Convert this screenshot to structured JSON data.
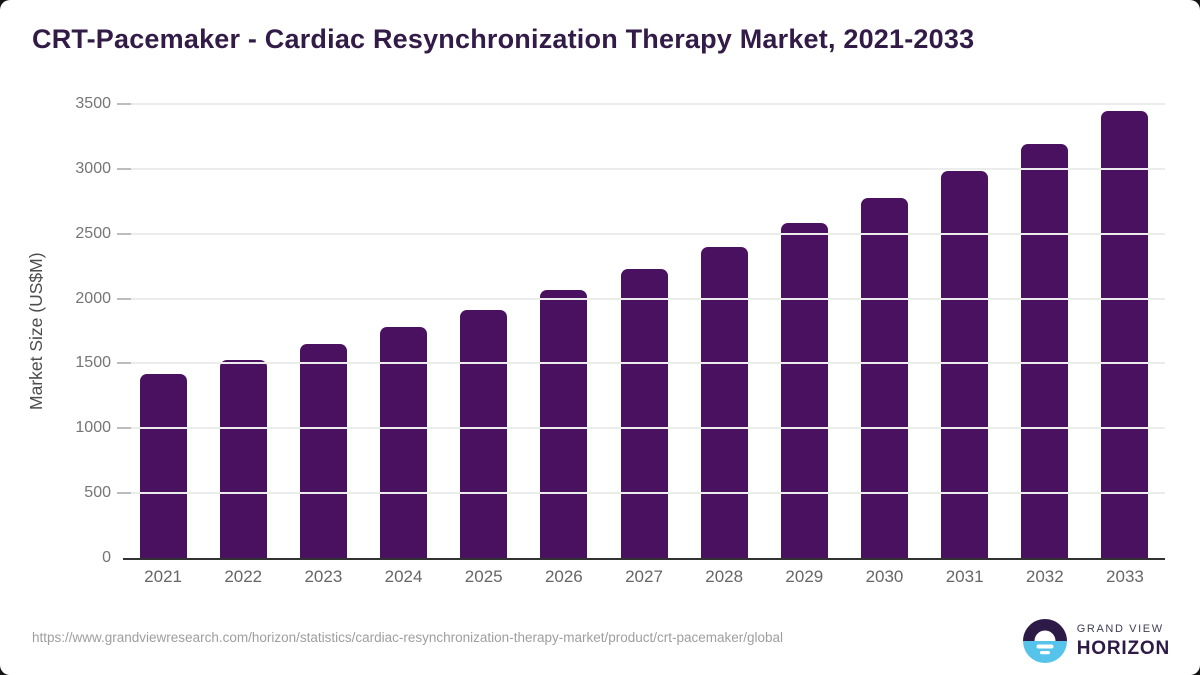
{
  "title": "CRT-Pacemaker - Cardiac Resynchronization Therapy Market, 2021-2033",
  "chart_data": {
    "type": "bar",
    "categories": [
      "2021",
      "2022",
      "2023",
      "2024",
      "2025",
      "2026",
      "2027",
      "2028",
      "2029",
      "2030",
      "2031",
      "2032",
      "2033"
    ],
    "values": [
      1420,
      1530,
      1650,
      1780,
      1915,
      2070,
      2230,
      2400,
      2585,
      2775,
      2980,
      3195,
      3445
    ],
    "title": "CRT-Pacemaker - Cardiac Resynchronization Therapy Market, 2021-2033",
    "xlabel": "",
    "ylabel": "Market Size (US$M)",
    "ylim": [
      0,
      3500
    ],
    "yticks": [
      0,
      500,
      1000,
      1500,
      2000,
      2500,
      3000,
      3500
    ],
    "grid": true,
    "legend": false,
    "bar_color": "#4a1160"
  },
  "colors": {
    "title": "#321b47",
    "bar": "#4a1160",
    "gridline": "#ececec",
    "axis_line": "#333333",
    "tick_text": "#757575",
    "logo_purple": "#2e1a47",
    "logo_blue": "#56c4ea"
  },
  "footer": {
    "url": "https://www.grandviewresearch.com/horizon/statistics/cardiac-resynchronization-therapy-market/product/crt-pacemaker/global",
    "logo": {
      "line1": "GRAND VIEW",
      "line2": "HORIZON"
    }
  }
}
